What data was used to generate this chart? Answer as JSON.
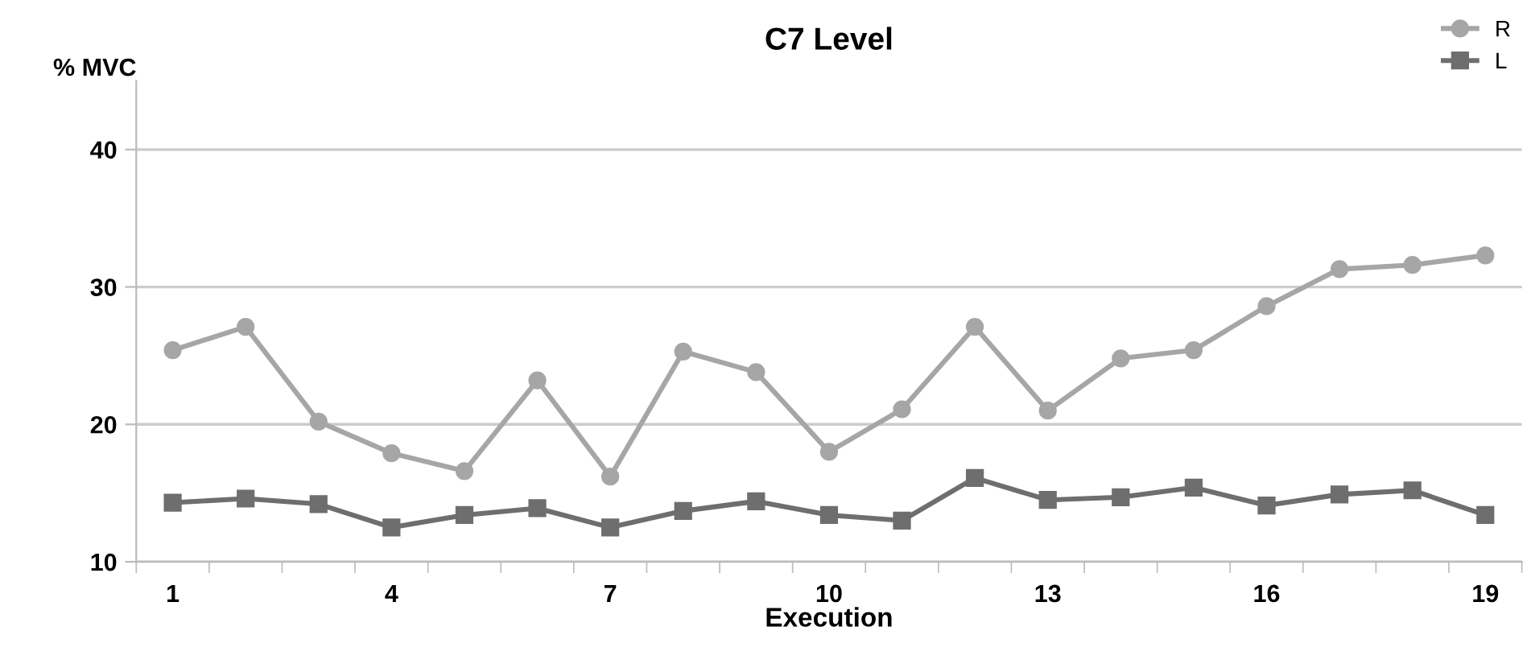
{
  "chart_data": {
    "type": "line",
    "title": "C7 Level",
    "xlabel": "Execution",
    "ylabel": "% MVC",
    "categories": [
      "1",
      null,
      null,
      "4",
      null,
      null,
      "7",
      null,
      null,
      "10",
      null,
      null,
      "13",
      null,
      null,
      "16",
      null,
      null,
      "19"
    ],
    "series": [
      {
        "name": "R",
        "color": "#a6a6a6",
        "marker": "circle",
        "values": [
          25.4,
          27.1,
          20.2,
          17.9,
          16.6,
          23.2,
          16.2,
          25.3,
          23.8,
          18.0,
          21.1,
          27.1,
          21.0,
          24.8,
          25.4,
          28.6,
          31.3,
          31.6,
          32.3
        ]
      },
      {
        "name": "L",
        "color": "#6e6e6e",
        "marker": "square",
        "values": [
          14.3,
          14.6,
          14.2,
          12.5,
          13.4,
          13.9,
          12.5,
          13.7,
          14.4,
          13.4,
          13.0,
          16.1,
          14.5,
          14.7,
          15.4,
          14.1,
          14.9,
          15.2,
          13.4
        ]
      }
    ],
    "ylim": [
      10,
      45
    ],
    "yticks": [
      10,
      20,
      30,
      40
    ],
    "grid": "y",
    "legend": "top right",
    "line_style": "solid"
  }
}
